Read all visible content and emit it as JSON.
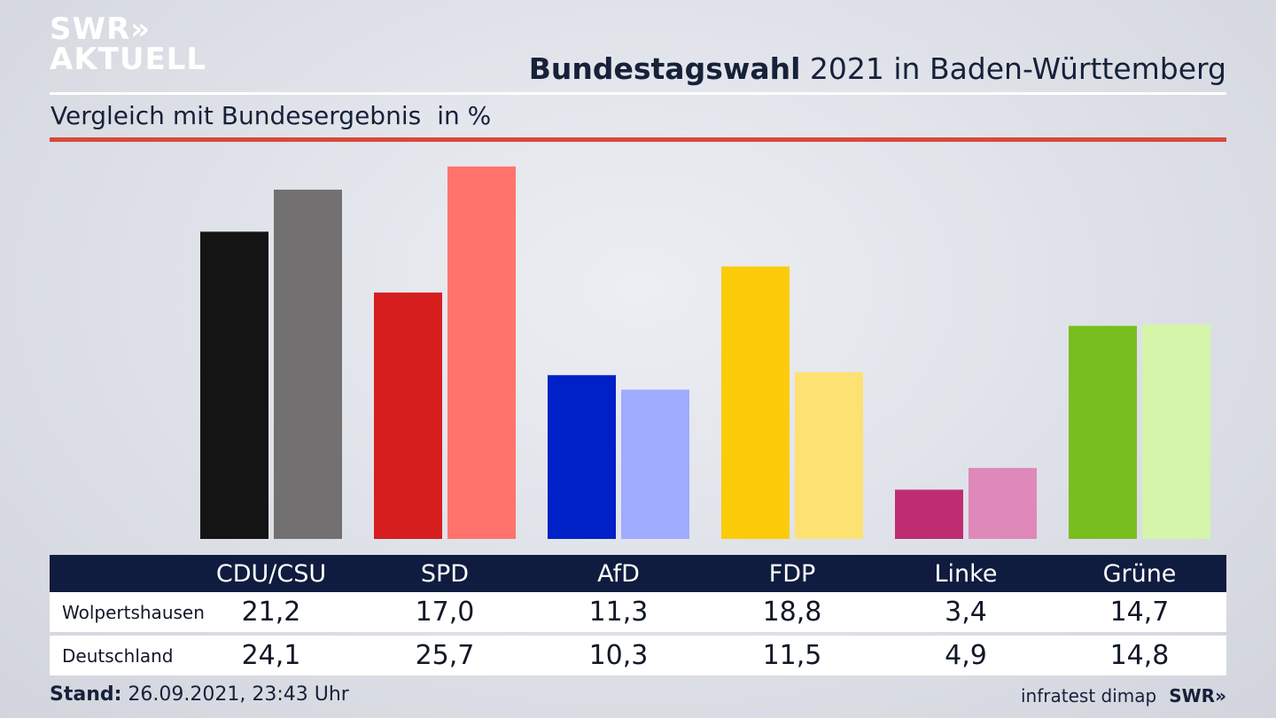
{
  "header": {
    "logo_line1": "SWR»",
    "logo_line2": "AKTUELL",
    "title_bold": "Bundestagswahl",
    "title_rest": " 2021 in Baden-Württemberg",
    "subtitle": "Vergleich mit Bundesergebnis",
    "unit": "in %"
  },
  "chart_data": {
    "type": "bar",
    "categories": [
      "CDU/CSU",
      "SPD",
      "AfD",
      "FDP",
      "Linke",
      "Grüne"
    ],
    "series": [
      {
        "name": "Wolpertshausen",
        "values": [
          21.2,
          17.0,
          11.3,
          18.8,
          3.4,
          14.7
        ]
      },
      {
        "name": "Deutschland",
        "values": [
          24.1,
          25.7,
          10.3,
          11.5,
          4.9,
          14.8
        ]
      }
    ],
    "colors_primary": [
      "#141414",
      "#d61e1e",
      "#0020c8",
      "#fccb0a",
      "#be2d72",
      "#78be1e"
    ],
    "colors_secondary": [
      "#727070",
      "#ff736c",
      "#9fabff",
      "#fde172",
      "#df88ba",
      "#d4f5aa"
    ],
    "grid": false
  },
  "table": {
    "headers": [
      "CDU/CSU",
      "SPD",
      "AfD",
      "FDP",
      "Linke",
      "Grüne"
    ],
    "rows": [
      {
        "label": "Wolpertshausen",
        "values": [
          "21,2",
          "17,0",
          "11,3",
          "18,8",
          "3,4",
          "14,7"
        ]
      },
      {
        "label": "Deutschland",
        "values": [
          "24,1",
          "25,7",
          "10,3",
          "11,5",
          "4,9",
          "14,8"
        ]
      }
    ]
  },
  "footer": {
    "stand_label": "Stand:",
    "stand_value": " 26.09.2021, 23:43 Uhr",
    "source": "infratest dimap",
    "brand": "SWR»"
  }
}
